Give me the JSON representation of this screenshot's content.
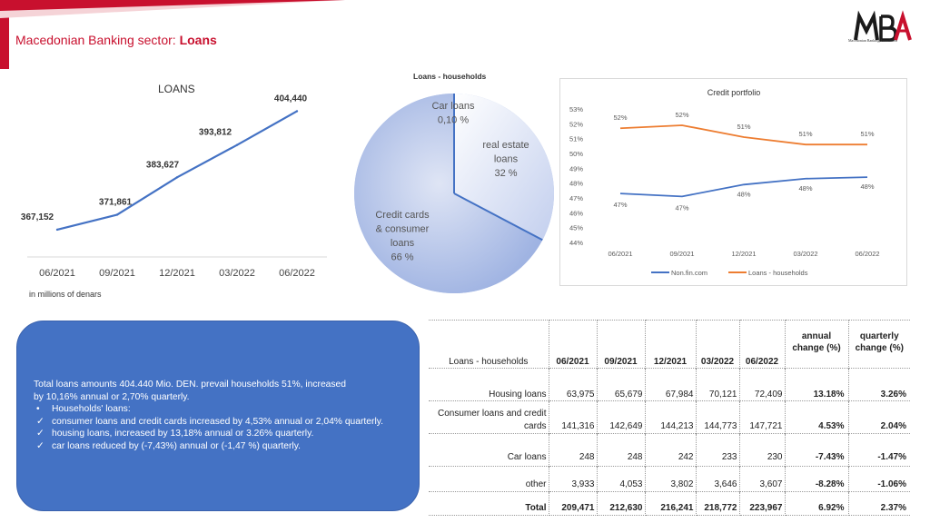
{
  "header": {
    "title_prefix": "Macedonian Banking sector: ",
    "title_strong": "Loans",
    "logo_text": "Macedonian Banking Association",
    "accent_color": "#c8102e"
  },
  "chart_data": [
    {
      "type": "line",
      "title": "LOANS",
      "categories": [
        "06/2021",
        "09/2021",
        "12/2021",
        "03/2022",
        "06/2022"
      ],
      "values": [
        367152,
        371861,
        383627,
        393812,
        404440
      ],
      "data_labels": [
        "367,152",
        "371,861",
        "383,627",
        "393,812",
        "404,440"
      ],
      "ylim": [
        358000,
        408000
      ],
      "grid": false,
      "color": "#4472c4",
      "note": "in millions of denars"
    },
    {
      "type": "pie",
      "title": "Loans -  households",
      "slices": [
        {
          "label_lines": [
            "Car loans",
            "0,10 %"
          ],
          "value": 0.1,
          "color": "#ccd5ee"
        },
        {
          "label_lines": [
            "real estate",
            "loans",
            "32 %"
          ],
          "value": 32,
          "color": "#ccd5ee"
        },
        {
          "label_lines": [
            "Credit cards",
            "& consumer",
            "loans",
            "66 %"
          ],
          "value": 66,
          "color": "#a9bce6"
        }
      ],
      "divider_color": "#4472c4"
    },
    {
      "type": "line",
      "title": "Credit portfolio",
      "categories": [
        "06/2021",
        "09/2021",
        "12/2021",
        "03/2022",
        "06/2022"
      ],
      "ylim": [
        44,
        53
      ],
      "y_ticks": [
        "44%",
        "45%",
        "46%",
        "47%",
        "48%",
        "49%",
        "50%",
        "51%",
        "52%",
        "53%"
      ],
      "series": [
        {
          "name": "Non.fin.com",
          "values": [
            47.3,
            47.1,
            47.9,
            48.3,
            48.4
          ],
          "labels": [
            "47%",
            "47%",
            "48%",
            "48%",
            "48%"
          ],
          "color": "#4472c4"
        },
        {
          "name": "Loans -  households",
          "values": [
            51.7,
            51.9,
            51.1,
            50.6,
            50.6
          ],
          "labels": [
            "52%",
            "52%",
            "51%",
            "51%",
            "51%"
          ],
          "color": "#ed7d31"
        }
      ],
      "legend": "bottom",
      "grid": false
    }
  ],
  "note_box": {
    "line1": "Total loans amounts 404.440 Mio. DEN. prevail households 51%, increased",
    "line2": "by 10,16% annual or 2,70% quarterly.",
    "bullet_mark": "•",
    "bullet_title": "Households' loans:",
    "check_mark": "✓",
    "items": [
      "consumer loans and credit cards increased by 4,53% annual or 2,04% quarterly.",
      "housing loans, increased by 13,18% annual or 3.26%  quarterly.",
      "car loans reduced by (-7,43%) annual or (-1,47 %) quarterly."
    ],
    "color": "#4472c4"
  },
  "table": {
    "name_header": "Loans -  households",
    "periods": [
      "06/2021",
      "09/2021",
      "12/2021",
      "03/2022",
      "06/2022"
    ],
    "annual_header": [
      "annual",
      "change (%)"
    ],
    "quarterly_header": [
      "quarterly",
      "change (%)"
    ],
    "rows": [
      {
        "label_lines": [
          "Housing loans"
        ],
        "values": [
          "63,975",
          "65,679",
          "67,984",
          "70,121",
          "72,409"
        ],
        "annual": "13.18%",
        "quarterly": "3.26%",
        "bold": false
      },
      {
        "label_lines": [
          "Consumer loans and credit",
          "cards"
        ],
        "values": [
          "141,316",
          "142,649",
          "144,213",
          "144,773",
          "147,721"
        ],
        "annual": "4.53%",
        "quarterly": "2.04%",
        "bold": false
      },
      {
        "label_lines": [
          "Car loans"
        ],
        "values": [
          "248",
          "248",
          "242",
          "233",
          "230"
        ],
        "annual": "-7.43%",
        "quarterly": "-1.47%",
        "bold": false
      },
      {
        "label_lines": [
          "other"
        ],
        "values": [
          "3,933",
          "4,053",
          "3,802",
          "3,646",
          "3,607"
        ],
        "annual": "-8.28%",
        "quarterly": "-1.06%",
        "bold": false
      },
      {
        "label_lines": [
          "Total"
        ],
        "values": [
          "209,471",
          "212,630",
          "216,241",
          "218,772",
          "223,967"
        ],
        "annual": "6.92%",
        "quarterly": "2.37%",
        "bold": true
      }
    ]
  }
}
